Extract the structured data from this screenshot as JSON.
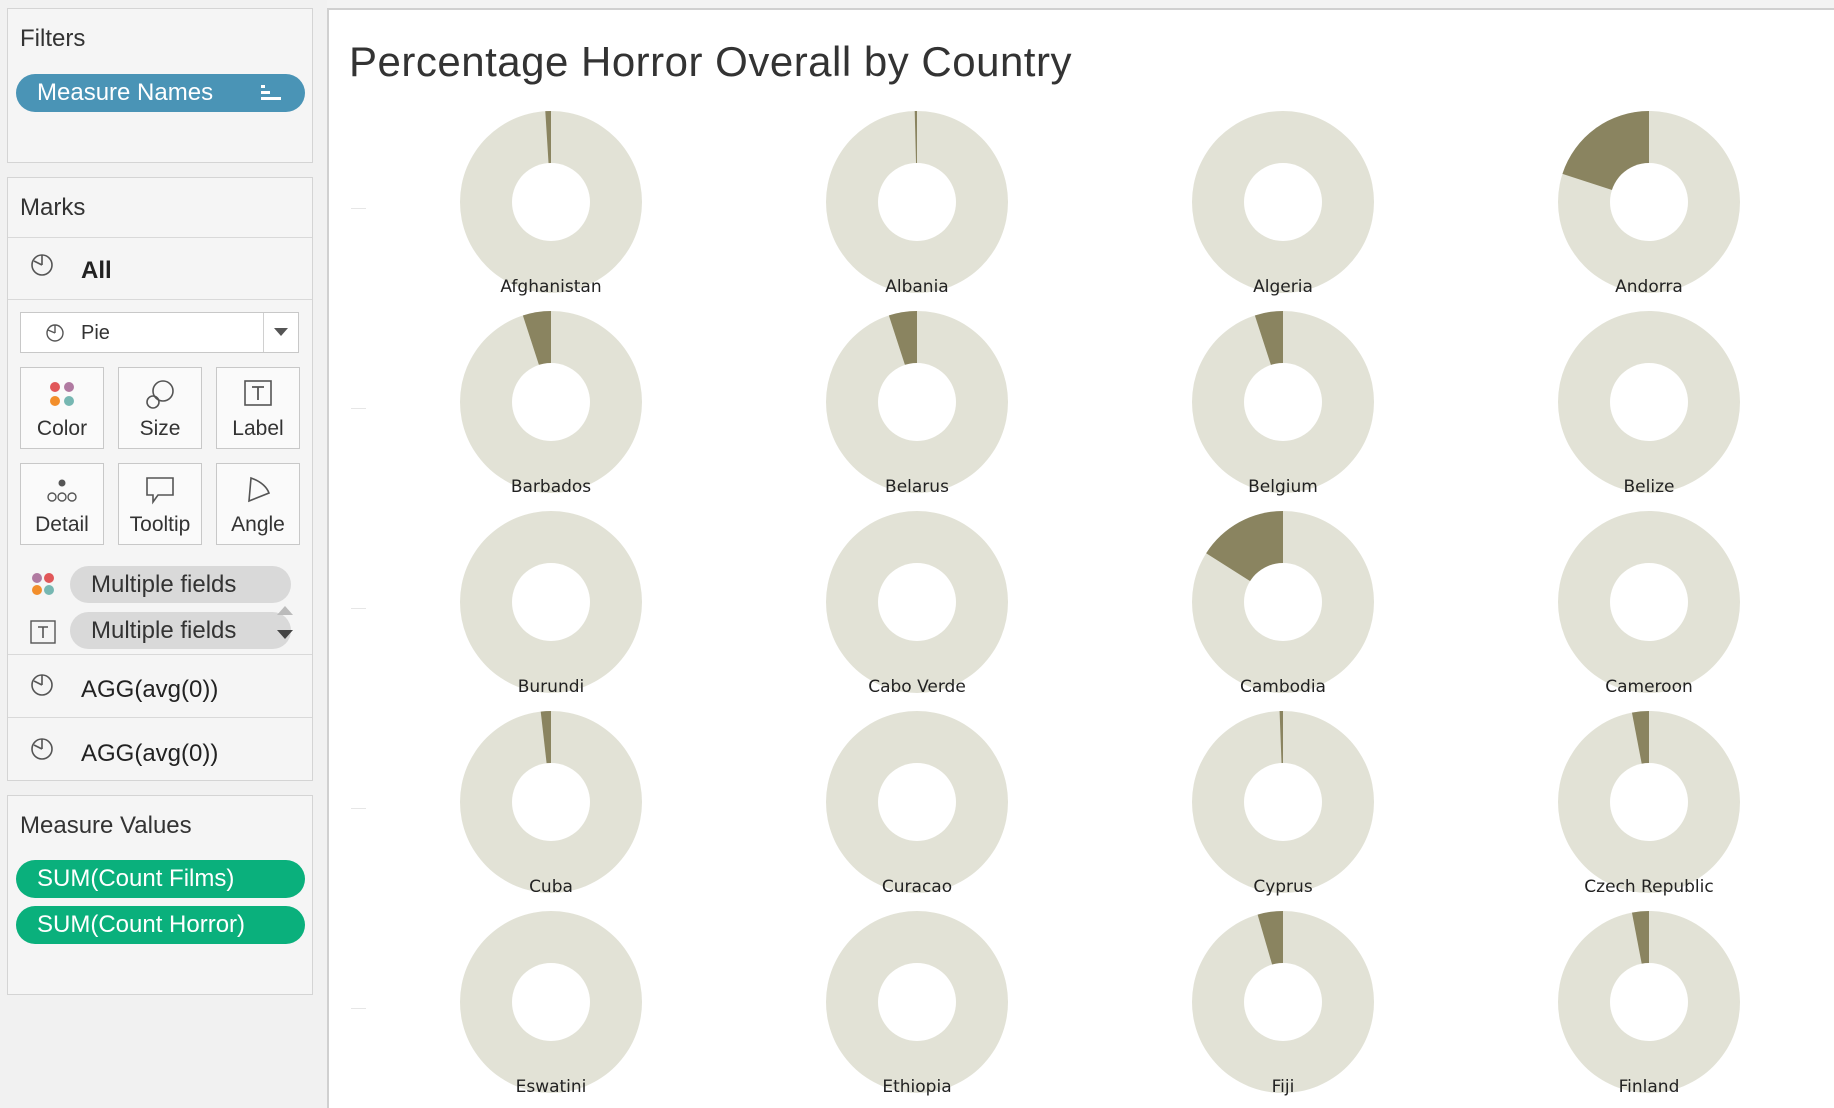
{
  "sidebar": {
    "filters": {
      "title": "Filters",
      "pill": "Measure Names"
    },
    "marks": {
      "title": "Marks",
      "all_label": "All",
      "mark_type": "Pie",
      "buttons": [
        "Color",
        "Size",
        "Label",
        "Detail",
        "Tooltip",
        "Angle"
      ],
      "field_pills": [
        "Multiple fields",
        "Multiple fields"
      ],
      "agg_rows": [
        "AGG(avg(0))",
        "AGG(avg(0))"
      ]
    },
    "measure_values": {
      "title": "Measure Values",
      "pills": [
        "SUM(Count Films)",
        "SUM(Count Horror)"
      ]
    }
  },
  "colors": {
    "horror": "#8a8460",
    "other": "#e2e2d6",
    "filter_pill": "#4a94b6",
    "measure_pill": "#0ab07c"
  },
  "chart_data": {
    "type": "pie",
    "title": "Percentage Horror Overall by Country",
    "legend": "none",
    "series": [
      "SUM(Count Horror)",
      "SUM(Count Films)"
    ],
    "countries": [
      {
        "name": "Afghanistan",
        "horror_pct": 1
      },
      {
        "name": "Albania",
        "horror_pct": 0.4
      },
      {
        "name": "Algeria",
        "horror_pct": 0
      },
      {
        "name": "Andorra",
        "horror_pct": 20
      },
      {
        "name": "Barbados",
        "horror_pct": 5
      },
      {
        "name": "Belarus",
        "horror_pct": 5
      },
      {
        "name": "Belgium",
        "horror_pct": 5
      },
      {
        "name": "Belize",
        "horror_pct": 0
      },
      {
        "name": "Burundi",
        "horror_pct": 0
      },
      {
        "name": "Cabo Verde",
        "horror_pct": 0
      },
      {
        "name": "Cambodia",
        "horror_pct": 16
      },
      {
        "name": "Cameroon",
        "horror_pct": 0
      },
      {
        "name": "Cuba",
        "horror_pct": 1.8
      },
      {
        "name": "Curacao",
        "horror_pct": 0
      },
      {
        "name": "Cyprus",
        "horror_pct": 0.6
      },
      {
        "name": "Czech Republic",
        "horror_pct": 3
      },
      {
        "name": "Eswatini",
        "horror_pct": 0
      },
      {
        "name": "Ethiopia",
        "horror_pct": 0
      },
      {
        "name": "Fiji",
        "horror_pct": 4.5
      },
      {
        "name": "Finland",
        "horror_pct": 3
      }
    ]
  }
}
